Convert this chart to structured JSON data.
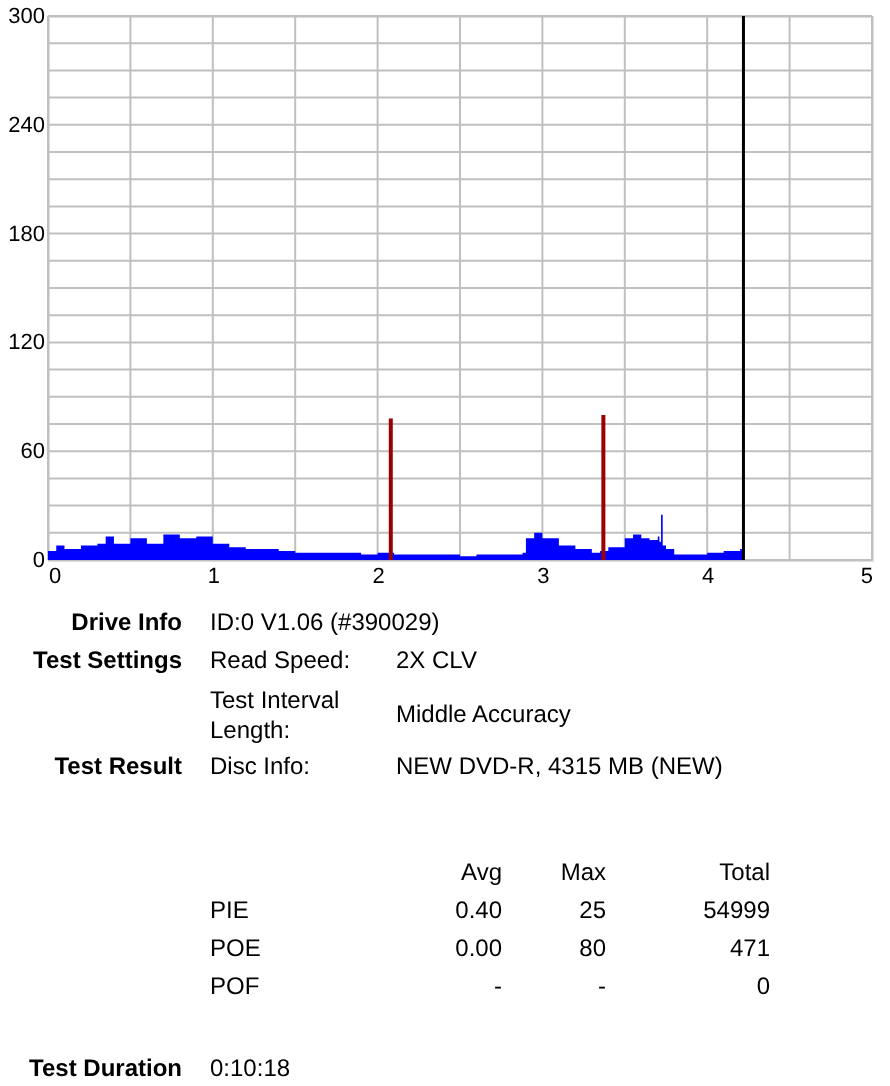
{
  "chart_data": {
    "type": "area",
    "xlim": [
      0,
      5
    ],
    "ylim": [
      0,
      300
    ],
    "xticks": [
      0,
      {
        "value": 0.5,
        "label": null
      },
      1,
      {
        "value": 1.5,
        "label": null
      },
      2,
      {
        "value": 2.5,
        "label": null
      },
      3,
      {
        "value": 3.5,
        "label": null
      },
      4,
      {
        "value": 4.5,
        "label": null
      },
      5
    ],
    "yticks": [
      0,
      {
        "value": 15,
        "label": null
      },
      {
        "value": 30,
        "label": null
      },
      {
        "value": 45,
        "label": null
      },
      60,
      {
        "value": 75,
        "label": null
      },
      {
        "value": 90,
        "label": null
      },
      {
        "value": 105,
        "label": null
      },
      120,
      {
        "value": 135,
        "label": null
      },
      {
        "value": 150,
        "label": null
      },
      {
        "value": 165,
        "label": null
      },
      180,
      {
        "value": 195,
        "label": null
      },
      {
        "value": 210,
        "label": null
      },
      {
        "value": 225,
        "label": null
      },
      240,
      {
        "value": 255,
        "label": null
      },
      {
        "value": 270,
        "label": null
      },
      {
        "value": 285,
        "label": null
      },
      300
    ],
    "grid": true,
    "series": [
      {
        "color": "#0000ff",
        "x": [
          0,
          0.05,
          0.1,
          0.2,
          0.3,
          0.35,
          0.4,
          0.5,
          0.6,
          0.7,
          0.8,
          0.9,
          1.0,
          1.1,
          1.2,
          1.3,
          1.4,
          1.5,
          1.6,
          1.7,
          1.8,
          1.9,
          2.0,
          2.1,
          2.2,
          2.3,
          2.4,
          2.5,
          2.6,
          2.7,
          2.8,
          2.88,
          2.9,
          2.95,
          3.0,
          3.1,
          3.2,
          3.3,
          3.35,
          3.4,
          3.5,
          3.55,
          3.6,
          3.65,
          3.7,
          3.71,
          3.72,
          3.73,
          3.75,
          3.8,
          3.9,
          4.0,
          4.1,
          4.2,
          4.22
        ],
        "values": [
          5,
          8,
          6,
          8,
          9,
          13,
          9,
          12,
          9,
          14,
          12,
          13,
          9,
          7,
          6,
          6,
          5,
          4,
          4,
          4,
          4,
          3,
          4,
          3,
          3,
          3,
          3,
          2,
          3,
          3,
          3,
          4,
          12,
          15,
          12,
          8,
          6,
          4,
          5,
          7,
          12,
          14,
          12,
          11,
          13,
          10,
          25,
          8,
          6,
          3,
          3,
          4,
          5,
          6,
          6
        ]
      },
      {
        "type": "bar",
        "color": "#990000",
        "x": [
          2.08,
          3.37
        ],
        "values": [
          78,
          80
        ]
      }
    ],
    "ref_lines": [
      {
        "axis": "x",
        "value": 4.22,
        "color": "#000000"
      }
    ],
    "annotations": [
      "Drive Info",
      "ID:0 V1.06 (#390029)",
      "Test Settings",
      "Read Speed:",
      "2X CLV",
      "Test Interval",
      "Length:",
      "Middle Accuracy",
      "Test Result",
      "Disc Info:",
      "NEW DVD-R, 4315 MB (NEW)",
      "Avg",
      "Max",
      "Total",
      "PIE",
      "0.40",
      "25",
      "54999",
      "POE",
      "0.00",
      "80",
      "471",
      "POF",
      "-",
      "-",
      "0",
      "Test Duration",
      "0:10:18"
    ]
  }
}
